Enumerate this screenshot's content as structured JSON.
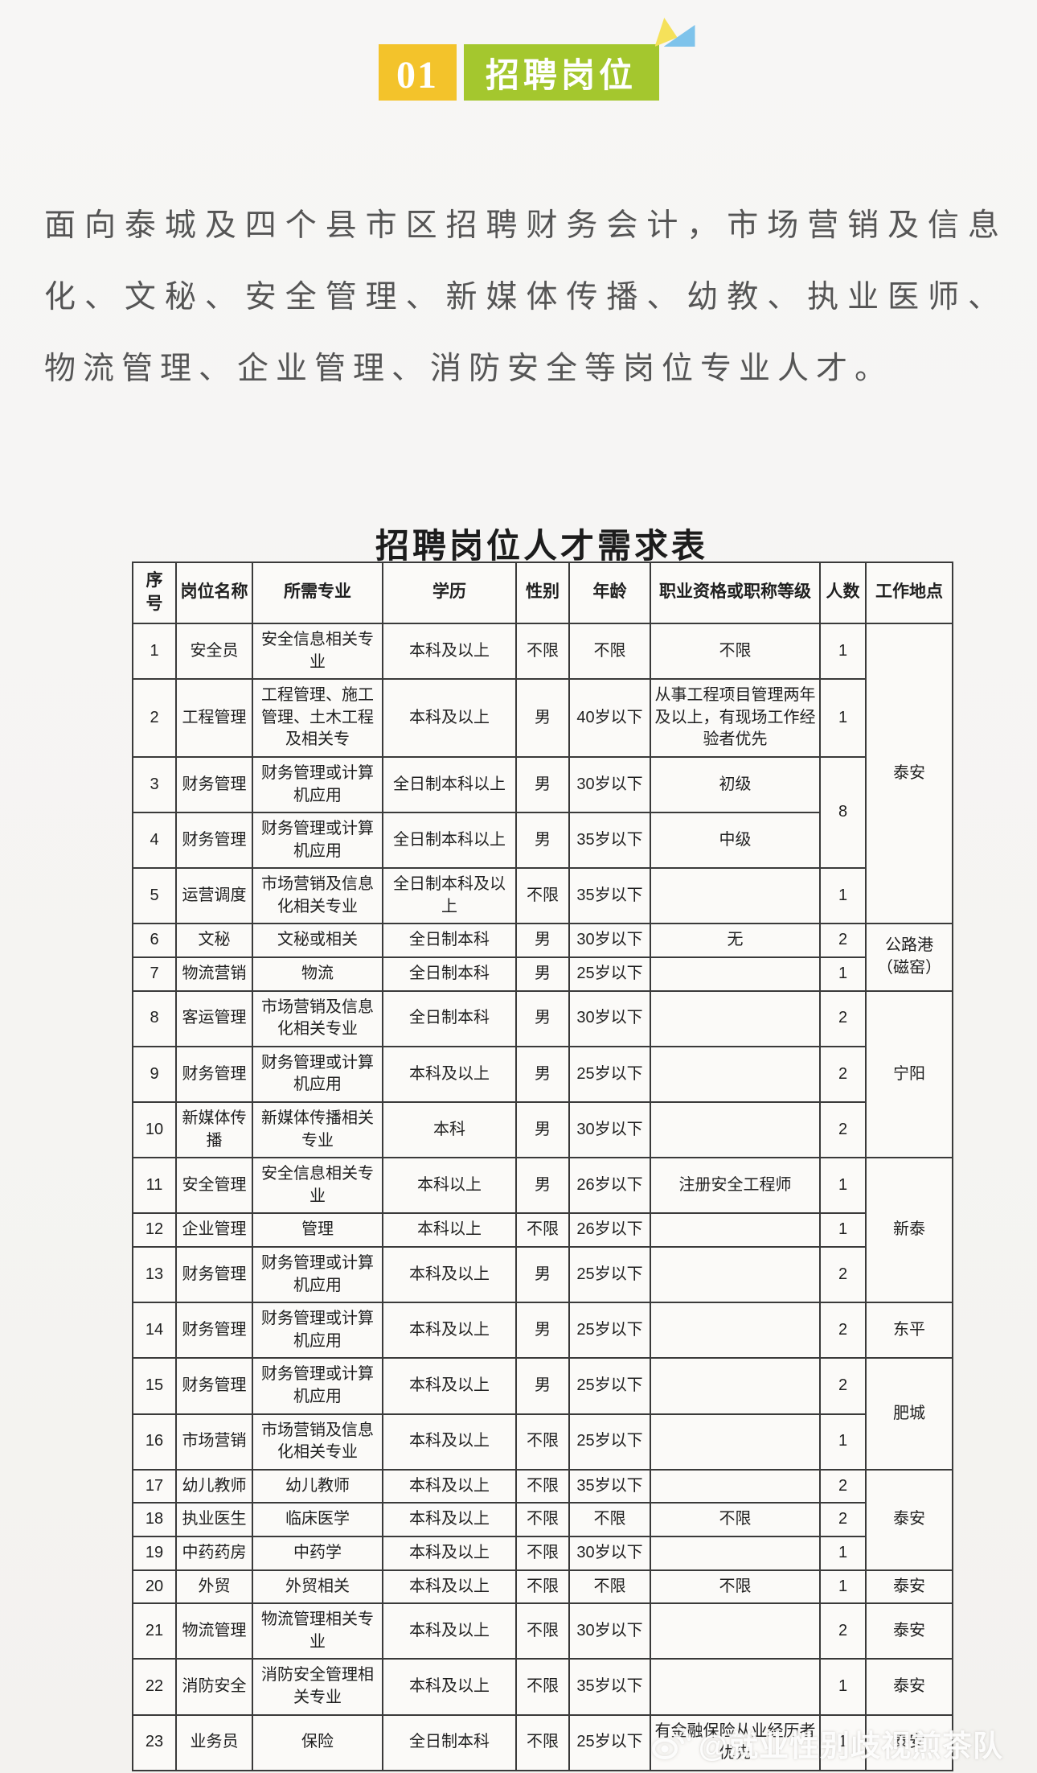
{
  "badge": {
    "number": "01",
    "title": "招聘岗位"
  },
  "intro": {
    "lines": [
      "面向泰城及四个县市区招聘财务会计，市场营销及信息",
      "化、文秘、安全管理、新媒体传播、幼教、执业医师、",
      "物流管理、企业管理、消防安全等岗位专业人才。"
    ]
  },
  "table": {
    "title": "招聘岗位人才需求表",
    "columns": [
      "序\n号",
      "岗位名称",
      "所需专业",
      "学历",
      "性别",
      "年龄",
      "职业资格或职称等级",
      "人数",
      "工作地点"
    ],
    "rows": [
      [
        "1",
        "安全员",
        "安全信息相关专业",
        "本科及以上",
        "不限",
        "不限",
        "不限",
        "1",
        {
          "text": "泰安",
          "rowspan": 5
        }
      ],
      [
        "2",
        "工程管理",
        "工程管理、施工管理、土木工程及相关专",
        "本科及以上",
        "男",
        "40岁以下",
        "从事工程项目管理两年及以上，有现场工作经验者优先",
        "1",
        null
      ],
      [
        "3",
        "财务管理",
        "财务管理或计算机应用",
        "全日制本科以上",
        "男",
        "30岁以下",
        "初级",
        {
          "text": "8",
          "rowspan": 2
        },
        null
      ],
      [
        "4",
        "财务管理",
        "财务管理或计算机应用",
        "全日制本科以上",
        "男",
        "35岁以下",
        "中级",
        null,
        null
      ],
      [
        "5",
        "运营调度",
        "市场营销及信息化相关专业",
        "全日制本科及以上",
        "不限",
        "35岁以下",
        "",
        "1",
        null
      ],
      [
        "6",
        "文秘",
        "文秘或相关",
        "全日制本科",
        "男",
        "30岁以下",
        "无",
        "2",
        {
          "text": "公路港\n（磁窑）",
          "rowspan": 2
        }
      ],
      [
        "7",
        "物流营销",
        "物流",
        "全日制本科",
        "男",
        "25岁以下",
        "",
        "1",
        null
      ],
      [
        "8",
        "客运管理",
        "市场营销及信息化相关专业",
        "全日制本科",
        "男",
        "30岁以下",
        "",
        "2",
        {
          "text": "宁阳",
          "rowspan": 3
        }
      ],
      [
        "9",
        "财务管理",
        "财务管理或计算机应用",
        "本科及以上",
        "男",
        "25岁以下",
        "",
        "2",
        null
      ],
      [
        "10",
        "新媒体传播",
        "新媒体传播相关专业",
        "本科",
        "男",
        "30岁以下",
        "",
        "2",
        null
      ],
      [
        "11",
        "安全管理",
        "安全信息相关专业",
        "本科以上",
        "男",
        "26岁以下",
        "注册安全工程师",
        "1",
        {
          "text": "新泰",
          "rowspan": 3
        }
      ],
      [
        "12",
        "企业管理",
        "管理",
        "本科以上",
        "不限",
        "26岁以下",
        "",
        "1",
        null
      ],
      [
        "13",
        "财务管理",
        "财务管理或计算机应用",
        "本科及以上",
        "男",
        "25岁以下",
        "",
        "2",
        null
      ],
      [
        "14",
        "财务管理",
        "财务管理或计算机应用",
        "本科及以上",
        "男",
        "25岁以下",
        "",
        "2",
        "东平"
      ],
      [
        "15",
        "财务管理",
        "财务管理或计算机应用",
        "本科及以上",
        "男",
        "25岁以下",
        "",
        "2",
        {
          "text": "肥城",
          "rowspan": 2
        }
      ],
      [
        "16",
        "市场营销",
        "市场营销及信息化相关专业",
        "本科及以上",
        "不限",
        "25岁以下",
        "",
        "1",
        null
      ],
      [
        "17",
        "幼儿教师",
        "幼儿教师",
        "本科及以上",
        "不限",
        "35岁以下",
        "",
        "2",
        {
          "text": "泰安",
          "rowspan": 3
        }
      ],
      [
        "18",
        "执业医生",
        "临床医学",
        "本科及以上",
        "不限",
        "不限",
        "不限",
        "2",
        null
      ],
      [
        "19",
        "中药药房",
        "中药学",
        "本科及以上",
        "不限",
        "30岁以下",
        "",
        "1",
        null
      ],
      [
        "20",
        "外贸",
        "外贸相关",
        "本科及以上",
        "不限",
        "不限",
        "不限",
        "1",
        "泰安"
      ],
      [
        "21",
        "物流管理",
        "物流管理相关专业",
        "本科及以上",
        "不限",
        "30岁以下",
        "",
        "2",
        "泰安"
      ],
      [
        "22",
        "消防安全",
        "消防安全管理相关专业",
        "本科及以上",
        "不限",
        "35岁以下",
        "",
        "1",
        "泰安"
      ],
      [
        "23",
        "业务员",
        "保险",
        "全日制本科",
        "不限",
        "25岁以下",
        "有金融保险从业经历者优先",
        "1",
        "泰安"
      ]
    ]
  },
  "watermark": {
    "text": "@就业性别歧视煎茶队"
  },
  "colors": {
    "badge_yellow": "#F3C32B",
    "badge_green": "#A4C72E",
    "triangle_yellow": "#F5E15A",
    "triangle_blue": "#7EC3EB",
    "table_line": "#3A3A3A",
    "intro_text": "#555555"
  }
}
